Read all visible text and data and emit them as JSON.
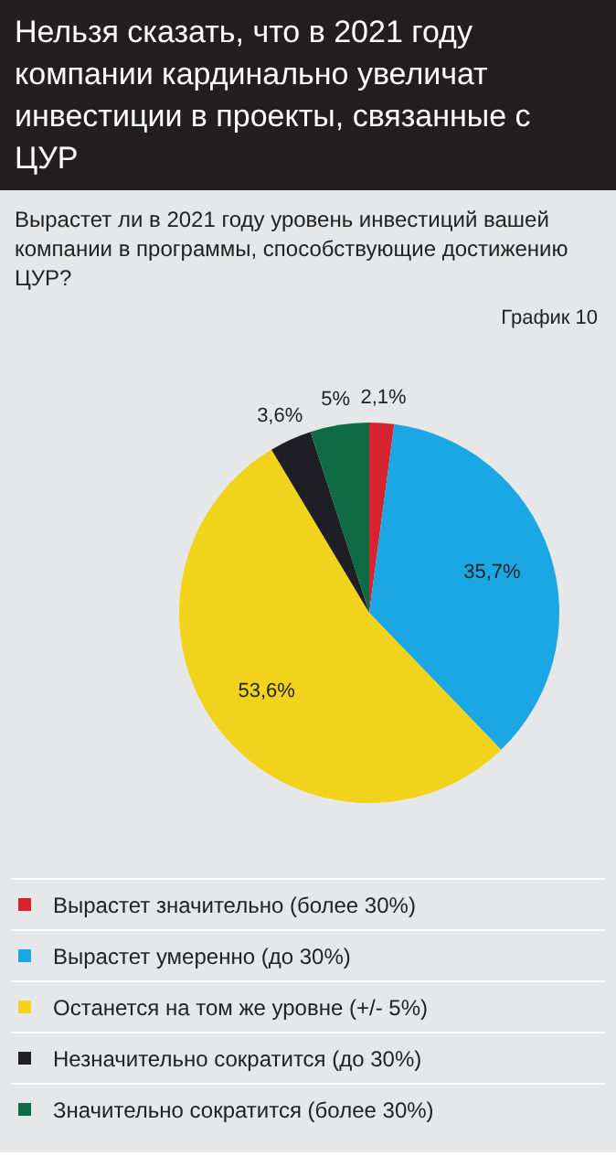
{
  "chart_data": {
    "type": "pie",
    "title": "Нельзя сказать, что в 2021 году компании кардинально увеличат инвестиции в проекты, связанные с ЦУР",
    "subtitle": "Вырастет ли в 2021 году уровень инвестиций вашей компании в программы, способствующие достижению ЦУР?",
    "annotations": [
      "График 10"
    ],
    "categories": [
      "Вырастет значительно (более 30%)",
      "Вырастет умеренно (до 30%)",
      "Останется на том же уровне (+/- 5%)",
      "Незначительно сократится (до 30%)",
      "Значительно сократится (более 30%)"
    ],
    "values": [
      2.1,
      35.7,
      53.6,
      3.6,
      5
    ],
    "value_labels": [
      "2,1%",
      "35,7%",
      "53,6%",
      "3,6%",
      "5%"
    ],
    "colors": [
      "#d7232f",
      "#1ba7e3",
      "#f2d31b",
      "#1e1e24",
      "#0d6b45"
    ],
    "legend": "bottom"
  }
}
